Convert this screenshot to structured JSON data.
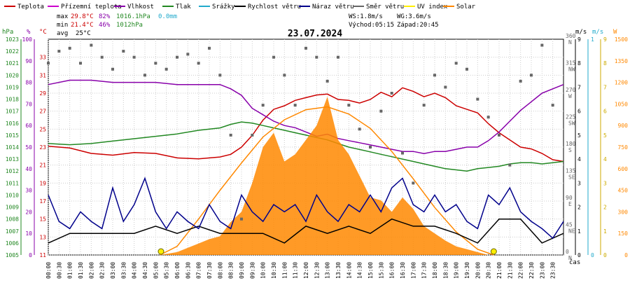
{
  "legend": [
    {
      "label": "Teplota",
      "color": "#cc0000"
    },
    {
      "label": "Přízemní teplota",
      "color": "#cc00cc"
    },
    {
      "label": "Vlhkost",
      "color": "#8800aa"
    },
    {
      "label": "Tlak",
      "color": "#228822"
    },
    {
      "label": "Srážky",
      "color": "#22aacc"
    },
    {
      "label": "Rychlost větru",
      "color": "#000000"
    },
    {
      "label": "Náraz větru",
      "color": "#00008b"
    },
    {
      "label": "Směr větru",
      "color": "#666666"
    },
    {
      "label": "UV index",
      "color": "#ffee00"
    },
    {
      "label": "Solar",
      "color": "#ff8800"
    }
  ],
  "stats": {
    "max_label": "max",
    "max_temp": "29.8°C",
    "max_hum": "82%",
    "max_press": "1016.1hPa",
    "max_rain": "0.0mm",
    "min_label": "min",
    "min_temp": "21.4°C",
    "min_hum": "46%",
    "min_press": "1012hPa",
    "avg_label": "avg",
    "avg_temp": "25°C"
  },
  "wind_info": {
    "ws": "WS:1.8m/s",
    "wg": "WG:3.6m/s",
    "sunrise": "Východ:05:15",
    "sunset": "Západ:20:45"
  },
  "units": {
    "hpa": "hPa",
    "pct": "%",
    "degc": "°C",
    "ms1": "m/s",
    "ms2": "m/s",
    "w": "W",
    "cas": "čas"
  },
  "chart_data": {
    "type": "line",
    "title": "23.07.2024",
    "x_ticks": [
      "00:00",
      "00:30",
      "01:00",
      "01:30",
      "02:00",
      "02:30",
      "03:00",
      "03:30",
      "04:00",
      "04:30",
      "05:00",
      "05:30",
      "06:00",
      "06:30",
      "07:00",
      "07:30",
      "08:00",
      "08:30",
      "09:00",
      "09:30",
      "10:00",
      "10:30",
      "11:00",
      "11:30",
      "12:00",
      "12:30",
      "13:00",
      "13:30",
      "14:00",
      "14:30",
      "15:00",
      "15:30",
      "16:00",
      "16:30",
      "17:00",
      "17:30",
      "18:00",
      "18:30",
      "19:00",
      "19:30",
      "20:00",
      "20:30",
      "21:00",
      "21:30",
      "22:00",
      "22:30",
      "23:00",
      "23:30"
    ],
    "axes": {
      "pressure_hpa": {
        "range": [
          1005,
          1023
        ],
        "ticks": [
          1005,
          1006,
          1007,
          1008,
          1009,
          1010,
          1011,
          1012,
          1013,
          1014,
          1015,
          1016,
          1017,
          1018,
          1019,
          1020,
          1021,
          1022,
          1023
        ]
      },
      "humidity_pct": {
        "range": [
          0,
          100
        ],
        "ticks": [
          0,
          10,
          20,
          30,
          40,
          50,
          60,
          70,
          80,
          90,
          100
        ]
      },
      "temperature_c": {
        "range": [
          11,
          35
        ],
        "ticks": [
          11,
          13,
          15,
          17,
          19,
          21,
          23,
          25,
          27,
          29,
          31,
          33
        ]
      },
      "wind_dir_deg": {
        "range": [
          0,
          360
        ],
        "ticks": [
          {
            "v": 0,
            "l": "N"
          },
          {
            "v": 45,
            "l": "NE"
          },
          {
            "v": 90,
            "l": "E"
          },
          {
            "v": 135,
            "l": "SE"
          },
          {
            "v": 180,
            "l": "S"
          },
          {
            "v": 225,
            "l": "SW"
          },
          {
            "v": 270,
            "l": "W"
          },
          {
            "v": 315,
            "l": "NW"
          },
          {
            "v": 360,
            "l": "N"
          }
        ]
      },
      "wind_speed_ms": {
        "range": [
          0,
          9
        ],
        "ticks": [
          0,
          1,
          2,
          3,
          4,
          5,
          6,
          7,
          8,
          9
        ]
      },
      "rain_mm": {
        "range": [
          0,
          1
        ],
        "ticks": [
          0,
          1
        ]
      },
      "uv_index": {
        "range": [
          0,
          9
        ],
        "ticks": [
          0,
          1,
          2,
          3,
          4,
          5,
          6,
          7,
          8,
          9
        ]
      },
      "solar_w": {
        "range": [
          0,
          1500
        ],
        "ticks": [
          0,
          150,
          300,
          450,
          600,
          750,
          900,
          1050,
          1200,
          1350,
          1500
        ]
      }
    },
    "grid": true,
    "series": [
      {
        "name": "Teplota",
        "axis": "temperature_c",
        "color": "#cc0000",
        "x": [
          0,
          1,
          2,
          3,
          4,
          5,
          6,
          7,
          8,
          8.5,
          9,
          9.5,
          10,
          10.5,
          11,
          11.5,
          12,
          12.5,
          13,
          13.5,
          14,
          14.5,
          15,
          15.5,
          16,
          16.5,
          17,
          17.5,
          18,
          18.5,
          19,
          19.5,
          20,
          20.5,
          21,
          21.5,
          22,
          22.5,
          23,
          23.5,
          24
        ],
        "y": [
          23.1,
          22.9,
          22.3,
          22.1,
          22.4,
          22.3,
          21.8,
          21.7,
          21.9,
          22.2,
          23.0,
          24.3,
          26.0,
          27.2,
          27.6,
          28.2,
          28.5,
          28.8,
          28.9,
          28.3,
          28.2,
          27.9,
          28.3,
          29.1,
          28.6,
          29.6,
          29.2,
          28.6,
          29.0,
          28.5,
          27.6,
          27.2,
          26.8,
          25.6,
          24.6,
          23.8,
          23.0,
          22.8,
          22.3,
          21.6,
          21.4
        ]
      },
      {
        "name": "Vlhkost",
        "axis": "humidity_pct",
        "color": "#8800aa",
        "x": [
          0,
          1,
          2,
          3,
          4,
          5,
          6,
          7,
          8,
          8.5,
          9,
          9.5,
          10,
          10.5,
          11,
          11.5,
          12,
          12.5,
          13,
          13.5,
          14,
          14.5,
          15,
          15.5,
          16,
          16.5,
          17,
          17.5,
          18,
          18.5,
          19,
          19.5,
          20,
          20.5,
          21,
          21.5,
          22,
          22.5,
          23,
          23.5,
          24
        ],
        "y": [
          79,
          81,
          81,
          80,
          80,
          80,
          79,
          79,
          79,
          77,
          74,
          68,
          65,
          62,
          60,
          59,
          57,
          55,
          56,
          54,
          53,
          52,
          51,
          50,
          49,
          48,
          48,
          47,
          48,
          48,
          49,
          50,
          50,
          53,
          57,
          62,
          67,
          71,
          75,
          77,
          79
        ]
      },
      {
        "name": "Tlak",
        "axis": "pressure_hpa",
        "color": "#228822",
        "x": [
          0,
          1,
          2,
          3,
          4,
          5,
          6,
          7,
          8,
          8.5,
          9,
          9.5,
          10,
          10.5,
          11,
          11.5,
          12,
          12.5,
          13,
          13.5,
          14,
          14.5,
          15,
          15.5,
          16,
          16.5,
          17,
          17.5,
          18,
          18.5,
          19,
          19.5,
          20,
          20.5,
          21,
          21.5,
          22,
          22.5,
          23,
          23.5,
          24
        ],
        "y": [
          1014.3,
          1014.2,
          1014.3,
          1014.5,
          1014.7,
          1014.9,
          1015.1,
          1015.4,
          1015.6,
          1015.9,
          1016.1,
          1016.0,
          1015.8,
          1015.6,
          1015.4,
          1015.2,
          1015.0,
          1014.8,
          1014.6,
          1014.3,
          1014.0,
          1013.8,
          1013.6,
          1013.4,
          1013.2,
          1013.0,
          1012.8,
          1012.6,
          1012.4,
          1012.2,
          1012.1,
          1012.0,
          1012.2,
          1012.3,
          1012.4,
          1012.6,
          1012.7,
          1012.7,
          1012.6,
          1012.7,
          1012.8
        ]
      },
      {
        "name": "Solar",
        "axis": "solar_w",
        "color": "#ff8800",
        "fill": true,
        "x": [
          5.2,
          6,
          6.5,
          7,
          7.5,
          8,
          8.5,
          9,
          9.5,
          10,
          10.5,
          11,
          11.5,
          12,
          12.5,
          13,
          13.5,
          14,
          14.5,
          15,
          15.5,
          16,
          16.5,
          17,
          17.5,
          18,
          18.5,
          19,
          19.5,
          20,
          20.5
        ],
        "y": [
          0,
          20,
          50,
          80,
          110,
          130,
          230,
          300,
          500,
          750,
          850,
          650,
          700,
          800,
          900,
          1100,
          800,
          700,
          550,
          400,
          380,
          300,
          400,
          320,
          200,
          150,
          100,
          60,
          40,
          20,
          0
        ]
      },
      {
        "name": "Solar max",
        "axis": "solar_w",
        "color": "#ff8800",
        "x": [
          5.2,
          6,
          7,
          8,
          9,
          10,
          11,
          12,
          13,
          14,
          15,
          16,
          17,
          18,
          19,
          20,
          20.75
        ],
        "y": [
          0,
          60,
          250,
          450,
          640,
          820,
          940,
          1010,
          1030,
          980,
          880,
          720,
          530,
          330,
          160,
          40,
          0
        ]
      },
      {
        "name": "Rychlost větru",
        "axis": "wind_speed_ms",
        "color": "#000000",
        "x": [
          0,
          1,
          2,
          3,
          4,
          5,
          6,
          7,
          8,
          9,
          10,
          11,
          12,
          13,
          14,
          15,
          16,
          17,
          18,
          19,
          20,
          21,
          22,
          23,
          24
        ],
        "y": [
          0.5,
          0.9,
          0.9,
          0.9,
          0.9,
          1.2,
          0.9,
          1.2,
          0.9,
          0.9,
          0.9,
          0.5,
          1.2,
          0.9,
          1.2,
          0.9,
          1.5,
          1.2,
          1.2,
          0.9,
          0.5,
          1.5,
          1.5,
          0.5,
          0.9
        ]
      },
      {
        "name": "Náraz větru",
        "axis": "wind_speed_ms",
        "color": "#00008b",
        "x": [
          0,
          0.5,
          1,
          1.5,
          2,
          2.5,
          3,
          3.5,
          4,
          4.5,
          5,
          5.5,
          6,
          6.5,
          7,
          7.5,
          8,
          8.5,
          9,
          9.5,
          10,
          10.5,
          11,
          11.5,
          12,
          12.5,
          13,
          13.5,
          14,
          14.5,
          15,
          15.5,
          16,
          16.5,
          17,
          17.5,
          18,
          18.5,
          19,
          19.5,
          20,
          20.5,
          21,
          21.5,
          22,
          22.5,
          23,
          23.5,
          24
        ],
        "y": [
          2.5,
          1.4,
          1.1,
          1.8,
          1.4,
          1.1,
          2.8,
          1.4,
          2.1,
          3.2,
          1.8,
          1.1,
          1.8,
          1.4,
          1.1,
          2.1,
          1.4,
          1.1,
          2.5,
          1.8,
          1.4,
          2.1,
          1.8,
          2.1,
          1.4,
          2.5,
          1.8,
          1.4,
          2.1,
          1.8,
          2.5,
          1.8,
          2.8,
          3.2,
          2.1,
          1.8,
          2.5,
          1.8,
          2.1,
          1.4,
          1.1,
          2.5,
          2.1,
          2.8,
          1.8,
          1.4,
          1.1,
          0.7,
          1.4
        ]
      },
      {
        "name": "Směr větru",
        "axis": "wind_dir_deg",
        "color": "#666666",
        "points": true,
        "x": [
          0,
          0.5,
          1,
          1.5,
          2,
          2.5,
          3,
          3.5,
          4,
          4.5,
          5,
          5.5,
          6,
          6.5,
          7,
          7.5,
          8,
          8.5,
          9,
          9.5,
          10,
          10.5,
          11,
          11.5,
          12,
          12.5,
          13,
          13.5,
          14,
          14.5,
          15,
          15.5,
          16,
          16.5,
          17,
          17.5,
          18,
          18.5,
          19,
          19.5,
          20,
          20.5,
          21,
          21.5,
          22,
          22.5,
          23,
          23.5
        ],
        "y": [
          320,
          340,
          345,
          320,
          350,
          330,
          310,
          340,
          330,
          300,
          320,
          310,
          330,
          335,
          320,
          345,
          300,
          200,
          60,
          200,
          250,
          330,
          300,
          250,
          345,
          330,
          290,
          330,
          250,
          210,
          180,
          240,
          270,
          170,
          120,
          250,
          300,
          280,
          320,
          310,
          260,
          230,
          200,
          150,
          290,
          300,
          350,
          250
        ]
      }
    ],
    "markers": [
      {
        "label": "Východ",
        "x": 5.25
      },
      {
        "label": "Západ",
        "x": 20.75
      }
    ]
  }
}
